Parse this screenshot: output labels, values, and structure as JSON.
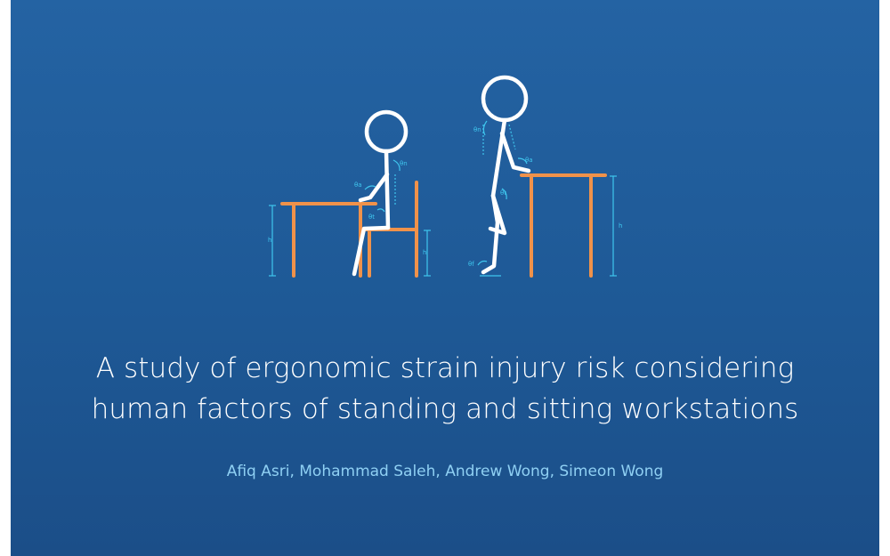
{
  "slide": {
    "title_line_1": "A study of ergonomic strain injury risk considering",
    "title_line_2": "human factors of standing and sitting workstations",
    "authors": "Afiq Asri, Mohammad Saleh, Andrew Wong, Simeon Wong"
  },
  "illustration": {
    "annotations": {
      "seated_desk_height": "h",
      "seated_chair_height": "h",
      "standing_desk_height": "h",
      "seated_neck_angle": "θn",
      "seated_arm_angle": "θa",
      "seated_trunk_angle": "θt",
      "standing_neck_angle": "θn",
      "standing_arm_angle": "θa",
      "standing_hip_angle": "θt",
      "standing_foot_angle": "θf"
    },
    "colors": {
      "background": "#1e5996",
      "figure": "#ffffff",
      "furniture": "#f0924a",
      "annotation": "#3fc6ee",
      "authors_text": "#8fd0f3"
    }
  }
}
